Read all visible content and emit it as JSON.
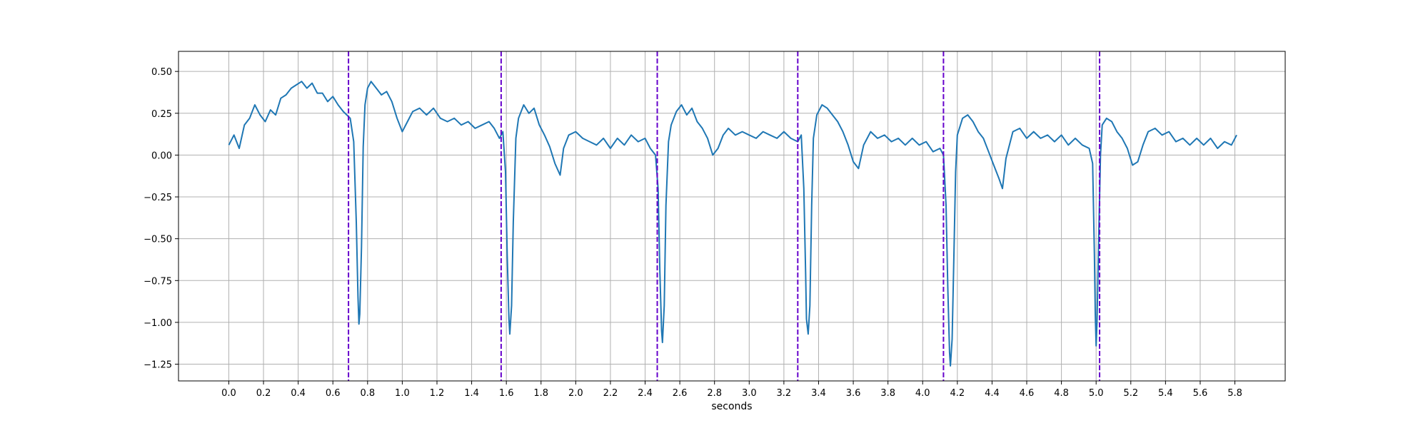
{
  "chart_data": {
    "type": "line",
    "title": "",
    "xlabel": "seconds",
    "ylabel": "",
    "xlim": [
      -0.29,
      6.09
    ],
    "ylim": [
      -1.35,
      0.62
    ],
    "xticks": [
      0.0,
      0.2,
      0.4,
      0.6,
      0.8,
      1.0,
      1.2,
      1.4,
      1.6,
      1.8,
      2.0,
      2.2,
      2.4,
      2.6,
      2.8,
      3.0,
      3.2,
      3.4,
      3.6,
      3.8,
      4.0,
      4.2,
      4.4,
      4.6,
      4.8,
      5.0,
      5.2,
      5.4,
      5.6,
      5.8
    ],
    "xtick_labels": [
      "0.0",
      "0.2",
      "0.4",
      "0.6",
      "0.8",
      "1.0",
      "1.2",
      "1.4",
      "1.6",
      "1.8",
      "2.0",
      "2.2",
      "2.4",
      "2.6",
      "2.8",
      "3.0",
      "3.2",
      "3.4",
      "3.6",
      "3.8",
      "4.0",
      "4.2",
      "4.4",
      "4.6",
      "4.8",
      "5.0",
      "5.2",
      "5.4",
      "5.6",
      "5.8"
    ],
    "yticks": [
      0.5,
      0.25,
      0.0,
      -0.25,
      -0.5,
      -0.75,
      -1.0,
      -1.25
    ],
    "ytick_labels": [
      "0.50",
      "0.25",
      "0.00",
      "−0.25",
      "−0.50",
      "−0.75",
      "−1.00",
      "−1.25"
    ],
    "grid": true,
    "series": [
      {
        "color": "#1f77b4",
        "points": [
          [
            0.0,
            0.06
          ],
          [
            0.03,
            0.12
          ],
          [
            0.06,
            0.04
          ],
          [
            0.09,
            0.18
          ],
          [
            0.12,
            0.22
          ],
          [
            0.15,
            0.3
          ],
          [
            0.18,
            0.24
          ],
          [
            0.21,
            0.2
          ],
          [
            0.24,
            0.27
          ],
          [
            0.27,
            0.24
          ],
          [
            0.3,
            0.34
          ],
          [
            0.33,
            0.36
          ],
          [
            0.36,
            0.4
          ],
          [
            0.39,
            0.42
          ],
          [
            0.42,
            0.44
          ],
          [
            0.45,
            0.4
          ],
          [
            0.48,
            0.43
          ],
          [
            0.51,
            0.37
          ],
          [
            0.54,
            0.37
          ],
          [
            0.57,
            0.32
          ],
          [
            0.6,
            0.35
          ],
          [
            0.63,
            0.3
          ],
          [
            0.66,
            0.26
          ],
          [
            0.68,
            0.24
          ],
          [
            0.7,
            0.22
          ],
          [
            0.72,
            0.08
          ],
          [
            0.735,
            -0.4
          ],
          [
            0.745,
            -0.85
          ],
          [
            0.75,
            -1.01
          ],
          [
            0.755,
            -0.95
          ],
          [
            0.765,
            -0.55
          ],
          [
            0.775,
            0.05
          ],
          [
            0.785,
            0.3
          ],
          [
            0.8,
            0.4
          ],
          [
            0.82,
            0.44
          ],
          [
            0.85,
            0.4
          ],
          [
            0.88,
            0.36
          ],
          [
            0.91,
            0.38
          ],
          [
            0.94,
            0.32
          ],
          [
            0.97,
            0.22
          ],
          [
            1.0,
            0.14
          ],
          [
            1.03,
            0.2
          ],
          [
            1.06,
            0.26
          ],
          [
            1.1,
            0.28
          ],
          [
            1.14,
            0.24
          ],
          [
            1.18,
            0.28
          ],
          [
            1.22,
            0.22
          ],
          [
            1.26,
            0.2
          ],
          [
            1.3,
            0.22
          ],
          [
            1.34,
            0.18
          ],
          [
            1.38,
            0.2
          ],
          [
            1.42,
            0.16
          ],
          [
            1.46,
            0.18
          ],
          [
            1.5,
            0.2
          ],
          [
            1.53,
            0.16
          ],
          [
            1.56,
            0.1
          ],
          [
            1.58,
            0.14
          ],
          [
            1.595,
            -0.1
          ],
          [
            1.605,
            -0.6
          ],
          [
            1.615,
            -0.98
          ],
          [
            1.62,
            -1.07
          ],
          [
            1.63,
            -0.9
          ],
          [
            1.64,
            -0.4
          ],
          [
            1.655,
            0.1
          ],
          [
            1.67,
            0.22
          ],
          [
            1.7,
            0.3
          ],
          [
            1.73,
            0.25
          ],
          [
            1.76,
            0.28
          ],
          [
            1.79,
            0.18
          ],
          [
            1.82,
            0.12
          ],
          [
            1.85,
            0.05
          ],
          [
            1.88,
            -0.05
          ],
          [
            1.91,
            -0.12
          ],
          [
            1.93,
            0.04
          ],
          [
            1.96,
            0.12
          ],
          [
            2.0,
            0.14
          ],
          [
            2.04,
            0.1
          ],
          [
            2.08,
            0.08
          ],
          [
            2.12,
            0.06
          ],
          [
            2.16,
            0.1
          ],
          [
            2.2,
            0.04
          ],
          [
            2.24,
            0.1
          ],
          [
            2.28,
            0.06
          ],
          [
            2.32,
            0.12
          ],
          [
            2.36,
            0.08
          ],
          [
            2.4,
            0.1
          ],
          [
            2.43,
            0.04
          ],
          [
            2.46,
            0.0
          ],
          [
            2.475,
            -0.2
          ],
          [
            2.485,
            -0.7
          ],
          [
            2.495,
            -1.05
          ],
          [
            2.5,
            -1.12
          ],
          [
            2.51,
            -0.9
          ],
          [
            2.52,
            -0.3
          ],
          [
            2.535,
            0.08
          ],
          [
            2.55,
            0.18
          ],
          [
            2.58,
            0.26
          ],
          [
            2.61,
            0.3
          ],
          [
            2.64,
            0.24
          ],
          [
            2.67,
            0.28
          ],
          [
            2.7,
            0.2
          ],
          [
            2.73,
            0.16
          ],
          [
            2.76,
            0.1
          ],
          [
            2.79,
            0.0
          ],
          [
            2.82,
            0.04
          ],
          [
            2.85,
            0.12
          ],
          [
            2.88,
            0.16
          ],
          [
            2.92,
            0.12
          ],
          [
            2.96,
            0.14
          ],
          [
            3.0,
            0.12
          ],
          [
            3.04,
            0.1
          ],
          [
            3.08,
            0.14
          ],
          [
            3.12,
            0.12
          ],
          [
            3.16,
            0.1
          ],
          [
            3.2,
            0.14
          ],
          [
            3.24,
            0.1
          ],
          [
            3.28,
            0.08
          ],
          [
            3.3,
            0.12
          ],
          [
            3.315,
            -0.2
          ],
          [
            3.325,
            -0.7
          ],
          [
            3.33,
            -0.98
          ],
          [
            3.34,
            -1.07
          ],
          [
            3.35,
            -0.9
          ],
          [
            3.36,
            -0.3
          ],
          [
            3.37,
            0.1
          ],
          [
            3.39,
            0.24
          ],
          [
            3.42,
            0.3
          ],
          [
            3.45,
            0.28
          ],
          [
            3.48,
            0.24
          ],
          [
            3.51,
            0.2
          ],
          [
            3.54,
            0.14
          ],
          [
            3.57,
            0.06
          ],
          [
            3.6,
            -0.04
          ],
          [
            3.63,
            -0.08
          ],
          [
            3.66,
            0.06
          ],
          [
            3.7,
            0.14
          ],
          [
            3.74,
            0.1
          ],
          [
            3.78,
            0.12
          ],
          [
            3.82,
            0.08
          ],
          [
            3.86,
            0.1
          ],
          [
            3.9,
            0.06
          ],
          [
            3.94,
            0.1
          ],
          [
            3.98,
            0.06
          ],
          [
            4.02,
            0.08
          ],
          [
            4.06,
            0.02
          ],
          [
            4.1,
            0.04
          ],
          [
            4.12,
            0.0
          ],
          [
            4.135,
            -0.3
          ],
          [
            4.145,
            -0.8
          ],
          [
            4.155,
            -1.18
          ],
          [
            4.16,
            -1.26
          ],
          [
            4.17,
            -1.1
          ],
          [
            4.18,
            -0.6
          ],
          [
            4.19,
            -0.1
          ],
          [
            4.2,
            0.12
          ],
          [
            4.23,
            0.22
          ],
          [
            4.26,
            0.24
          ],
          [
            4.29,
            0.2
          ],
          [
            4.32,
            0.14
          ],
          [
            4.35,
            0.1
          ],
          [
            4.38,
            0.02
          ],
          [
            4.41,
            -0.06
          ],
          [
            4.44,
            -0.14
          ],
          [
            4.46,
            -0.2
          ],
          [
            4.48,
            -0.02
          ],
          [
            4.52,
            0.14
          ],
          [
            4.56,
            0.16
          ],
          [
            4.6,
            0.1
          ],
          [
            4.64,
            0.14
          ],
          [
            4.68,
            0.1
          ],
          [
            4.72,
            0.12
          ],
          [
            4.76,
            0.08
          ],
          [
            4.8,
            0.12
          ],
          [
            4.84,
            0.06
          ],
          [
            4.88,
            0.1
          ],
          [
            4.92,
            0.06
          ],
          [
            4.96,
            0.04
          ],
          [
            4.98,
            -0.05
          ],
          [
            4.99,
            -0.6
          ],
          [
            4.995,
            -0.95
          ],
          [
            5.0,
            -1.14
          ],
          [
            5.005,
            -1.0
          ],
          [
            5.015,
            -0.5
          ],
          [
            5.025,
            0.0
          ],
          [
            5.035,
            0.18
          ],
          [
            5.06,
            0.22
          ],
          [
            5.09,
            0.2
          ],
          [
            5.12,
            0.14
          ],
          [
            5.15,
            0.1
          ],
          [
            5.18,
            0.04
          ],
          [
            5.21,
            -0.06
          ],
          [
            5.24,
            -0.04
          ],
          [
            5.27,
            0.06
          ],
          [
            5.3,
            0.14
          ],
          [
            5.34,
            0.16
          ],
          [
            5.38,
            0.12
          ],
          [
            5.42,
            0.14
          ],
          [
            5.46,
            0.08
          ],
          [
            5.5,
            0.1
          ],
          [
            5.54,
            0.06
          ],
          [
            5.58,
            0.1
          ],
          [
            5.62,
            0.06
          ],
          [
            5.66,
            0.1
          ],
          [
            5.7,
            0.04
          ],
          [
            5.74,
            0.08
          ],
          [
            5.78,
            0.06
          ],
          [
            5.81,
            0.12
          ]
        ]
      }
    ],
    "markers": {
      "style": "dashed",
      "color": "#6600cc",
      "x": [
        0.69,
        1.57,
        2.47,
        3.28,
        4.12,
        5.02
      ]
    }
  }
}
